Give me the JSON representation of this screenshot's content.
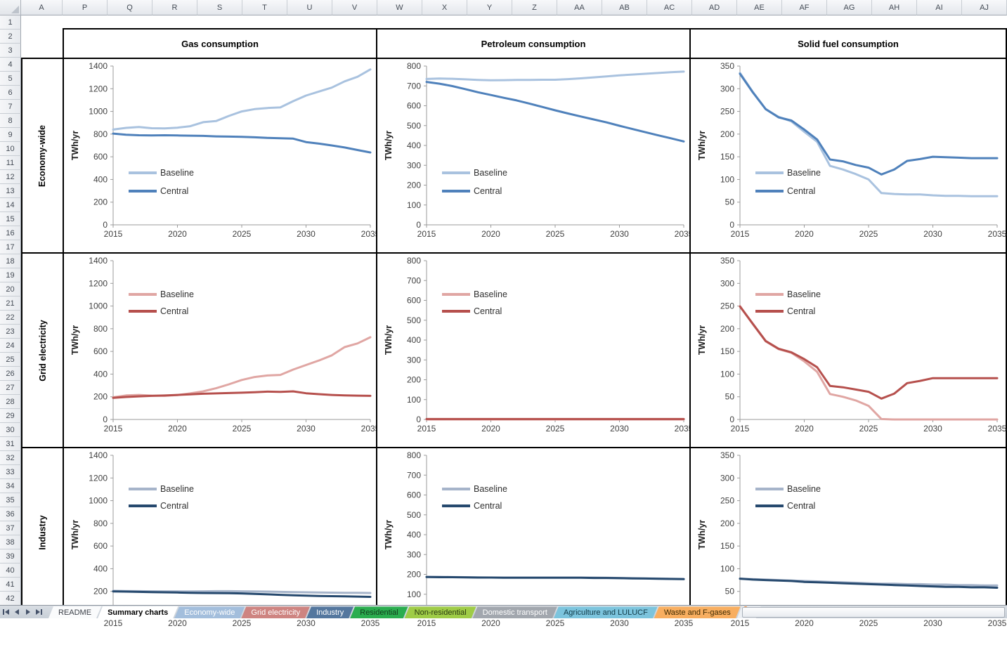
{
  "window": {
    "title": "Summary charts"
  },
  "spreadsheet": {
    "column_headers": [
      "A",
      "P",
      "Q",
      "R",
      "S",
      "T",
      "U",
      "V",
      "W",
      "X",
      "Y",
      "Z",
      "AA",
      "AB",
      "AC",
      "AD",
      "AE",
      "AF",
      "AG",
      "AH",
      "AI",
      "AJ"
    ],
    "row_count": 42,
    "column_groups": [
      {
        "title": "Gas consumption"
      },
      {
        "title": "Petroleum consumption"
      },
      {
        "title": "Solid fuel consumption"
      }
    ],
    "row_groups": [
      {
        "label": "Economy-wide"
      },
      {
        "label": "Grid electricity"
      },
      {
        "label": "Industry"
      }
    ]
  },
  "chart_data": [
    {
      "type": "line",
      "row_group": "Economy-wide",
      "col_group": "Gas consumption",
      "ylabel": "TWh/yr",
      "ylim": [
        0,
        1400
      ],
      "y_tick_step": 200,
      "x_start": 2015,
      "x_end": 2035,
      "x_tick_step": 5,
      "legend_position": "center-left",
      "grid": false,
      "series": [
        {
          "name": "Baseline",
          "color": "#A9C2DF",
          "values": [
            840,
            855,
            862,
            852,
            850,
            857,
            870,
            905,
            915,
            960,
            1000,
            1020,
            1030,
            1035,
            1090,
            1140,
            1175,
            1210,
            1265,
            1305,
            1370
          ]
        },
        {
          "name": "Central",
          "color": "#4F81BB",
          "values": [
            805,
            795,
            790,
            788,
            790,
            788,
            786,
            784,
            780,
            778,
            776,
            772,
            766,
            764,
            760,
            730,
            716,
            700,
            682,
            660,
            638
          ]
        }
      ]
    },
    {
      "type": "line",
      "row_group": "Economy-wide",
      "col_group": "Petroleum consumption",
      "ylabel": "TWh/yr",
      "ylim": [
        0,
        800
      ],
      "y_tick_step": 100,
      "x_start": 2015,
      "x_end": 2035,
      "x_tick_step": 5,
      "legend_position": "center-left",
      "grid": false,
      "series": [
        {
          "name": "Baseline",
          "color": "#A9C2DF",
          "values": [
            735,
            737,
            736,
            733,
            730,
            728,
            729,
            730,
            730,
            731,
            731,
            734,
            738,
            743,
            748,
            753,
            757,
            761,
            765,
            769,
            772
          ]
        },
        {
          "name": "Central",
          "color": "#4F81BB",
          "values": [
            720,
            711,
            699,
            684,
            668,
            654,
            640,
            627,
            611,
            594,
            577,
            561,
            546,
            531,
            516,
            499,
            483,
            467,
            451,
            436,
            420
          ]
        }
      ]
    },
    {
      "type": "line",
      "row_group": "Economy-wide",
      "col_group": "Solid fuel consumption",
      "ylabel": "TWh/yr",
      "ylim": [
        0,
        350
      ],
      "y_tick_step": 50,
      "x_start": 2015,
      "x_end": 2035,
      "x_tick_step": 5,
      "legend_position": "center-left",
      "grid": false,
      "series": [
        {
          "name": "Baseline",
          "color": "#A9C2DF",
          "values": [
            335,
            293,
            255,
            238,
            228,
            205,
            183,
            130,
            122,
            112,
            100,
            70,
            68,
            67,
            67,
            65,
            64,
            64,
            63,
            63,
            63
          ]
        },
        {
          "name": "Central",
          "color": "#4F81BB",
          "values": [
            333,
            292,
            255,
            237,
            230,
            210,
            188,
            144,
            140,
            132,
            126,
            111,
            122,
            141,
            145,
            150,
            149,
            148,
            147,
            147,
            147
          ]
        }
      ]
    },
    {
      "type": "line",
      "row_group": "Grid electricity",
      "col_group": "Gas consumption",
      "ylabel": "TWh/yr",
      "ylim": [
        0,
        1400
      ],
      "y_tick_step": 200,
      "x_start": 2015,
      "x_end": 2035,
      "x_tick_step": 5,
      "legend_position": "top-left",
      "grid": false,
      "series": [
        {
          "name": "Baseline",
          "color": "#E0A6A3",
          "values": [
            195,
            212,
            216,
            210,
            208,
            215,
            230,
            248,
            275,
            310,
            348,
            374,
            388,
            393,
            440,
            480,
            520,
            565,
            638,
            670,
            725
          ]
        },
        {
          "name": "Central",
          "color": "#B6504D",
          "values": [
            190,
            198,
            204,
            208,
            211,
            216,
            222,
            227,
            230,
            233,
            236,
            240,
            245,
            243,
            248,
            231,
            223,
            216,
            212,
            210,
            208
          ]
        }
      ]
    },
    {
      "type": "line",
      "row_group": "Grid electricity",
      "col_group": "Petroleum consumption",
      "ylabel": "TWh/yr",
      "ylim": [
        0,
        800
      ],
      "y_tick_step": 100,
      "x_start": 2015,
      "x_end": 2035,
      "x_tick_step": 5,
      "legend_position": "top-left",
      "grid": false,
      "series": [
        {
          "name": "Baseline",
          "color": "#E0A6A3",
          "values": [
            0,
            0,
            0,
            0,
            0,
            0,
            0,
            0,
            0,
            0,
            0,
            0,
            0,
            0,
            0,
            0,
            0,
            0,
            0,
            0,
            0
          ]
        },
        {
          "name": "Central",
          "color": "#B6504D",
          "values": [
            2,
            2,
            2,
            2,
            2,
            2,
            2,
            2,
            2,
            2,
            2,
            2,
            2,
            2,
            2,
            2,
            2,
            2,
            2,
            2,
            2
          ]
        }
      ]
    },
    {
      "type": "line",
      "row_group": "Grid electricity",
      "col_group": "Solid fuel consumption",
      "ylabel": "TWh/yr",
      "ylim": [
        0,
        350
      ],
      "y_tick_step": 50,
      "x_start": 2015,
      "x_end": 2035,
      "x_tick_step": 5,
      "legend_position": "top-left",
      "grid": false,
      "series": [
        {
          "name": "Baseline",
          "color": "#E0A6A3",
          "values": [
            250,
            210,
            172,
            155,
            147,
            128,
            105,
            56,
            50,
            42,
            30,
            1,
            0,
            0,
            0,
            0,
            0,
            0,
            0,
            0,
            0
          ]
        },
        {
          "name": "Central",
          "color": "#B6504D",
          "values": [
            249,
            211,
            173,
            156,
            148,
            133,
            115,
            74,
            71,
            66,
            61,
            46,
            57,
            80,
            85,
            91,
            91,
            91,
            91,
            91,
            91
          ]
        }
      ]
    },
    {
      "type": "line",
      "row_group": "Industry",
      "col_group": "Gas consumption",
      "ylabel": "TWh/yr",
      "ylim": [
        0,
        1400
      ],
      "y_tick_step": 200,
      "x_start": 2015,
      "x_end": 2035,
      "x_tick_step": 5,
      "legend_position": "top-left",
      "grid": false,
      "series": [
        {
          "name": "Baseline",
          "color": "#A6B4CA",
          "values": [
            205,
            203,
            202,
            201,
            200,
            200,
            200,
            201,
            202,
            202,
            201,
            200,
            198,
            196,
            194,
            192,
            190,
            189,
            188,
            187,
            186
          ]
        },
        {
          "name": "Central",
          "color": "#26496E",
          "values": [
            200,
            198,
            196,
            194,
            192,
            190,
            188,
            186,
            185,
            184,
            182,
            178,
            174,
            170,
            166,
            163,
            160,
            158,
            156,
            154,
            152
          ]
        }
      ]
    },
    {
      "type": "line",
      "row_group": "Industry",
      "col_group": "Petroleum consumption",
      "ylabel": "TWh/yr",
      "ylim": [
        0,
        800
      ],
      "y_tick_step": 100,
      "x_start": 2015,
      "x_end": 2035,
      "x_tick_step": 5,
      "legend_position": "top-left",
      "grid": false,
      "series": [
        {
          "name": "Baseline",
          "color": "#A6B4CA",
          "values": [
            188,
            188,
            187,
            186,
            185,
            184,
            184,
            184,
            184,
            184,
            184,
            184,
            184,
            184,
            183,
            182,
            181,
            180,
            179,
            178,
            177
          ]
        },
        {
          "name": "Central",
          "color": "#26496E",
          "values": [
            187,
            186,
            186,
            185,
            184,
            184,
            183,
            183,
            183,
            183,
            183,
            183,
            183,
            182,
            182,
            181,
            180,
            179,
            178,
            177,
            176
          ]
        }
      ]
    },
    {
      "type": "line",
      "row_group": "Industry",
      "col_group": "Solid fuel consumption",
      "ylabel": "TWh/yr",
      "ylim": [
        0,
        350
      ],
      "y_tick_step": 50,
      "x_start": 2015,
      "x_end": 2035,
      "x_tick_step": 5,
      "legend_position": "top-left",
      "grid": false,
      "series": [
        {
          "name": "Baseline",
          "color": "#A6B4CA",
          "values": [
            78,
            77,
            76,
            75,
            74,
            73,
            72,
            71,
            70,
            69,
            68,
            67,
            67,
            66,
            66,
            65,
            65,
            64,
            64,
            63,
            63
          ]
        },
        {
          "name": "Central",
          "color": "#26496E",
          "values": [
            78,
            76,
            75,
            74,
            73,
            71,
            70,
            69,
            68,
            67,
            66,
            65,
            64,
            63,
            62,
            61,
            60,
            60,
            59,
            59,
            58
          ]
        }
      ]
    }
  ],
  "tab_bar": {
    "nav_buttons": [
      "first-sheet",
      "previous-sheet",
      "next-sheet",
      "last-sheet"
    ],
    "tabs": [
      {
        "label": "README",
        "bg": "#FAFBFC",
        "text": "#3A3F47",
        "active": false
      },
      {
        "label": "Summary charts",
        "bg": "#FFFFFF",
        "text": "#000000",
        "active": true
      },
      {
        "label": "Economy-wide",
        "bg": "#A3BEDC",
        "text": "#FFFFFF",
        "active": false
      },
      {
        "label": "Grid electricity",
        "bg": "#CE8481",
        "text": "#FFFFFF",
        "active": false
      },
      {
        "label": "Industry",
        "bg": "#54779E",
        "text": "#FFFFFF",
        "active": false
      },
      {
        "label": "Residential",
        "bg": "#2BAD4F",
        "text": "#123B1D",
        "active": false
      },
      {
        "label": "Non-residential",
        "bg": "#9FCC47",
        "text": "#2A3A10",
        "active": false
      },
      {
        "label": "Domestic transport",
        "bg": "#A2A7AE",
        "text": "#FFFFFF",
        "active": false
      },
      {
        "label": "Agriculture and LULUCF",
        "bg": "#7CC4DD",
        "text": "#113A47",
        "active": false
      },
      {
        "label": "Waste and F-gases",
        "bg": "#F8AE60",
        "text": "#3D2A00",
        "active": false
      }
    ]
  }
}
